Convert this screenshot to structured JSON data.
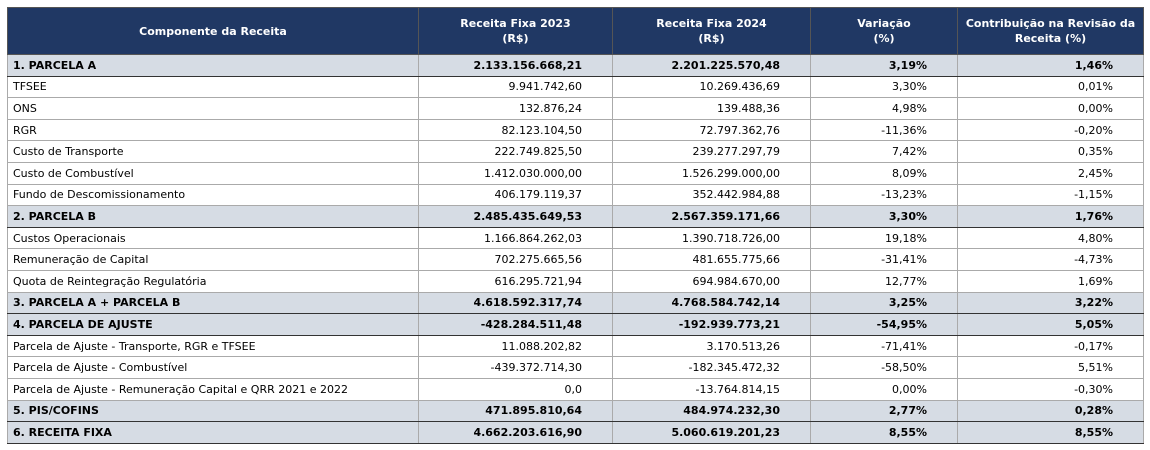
{
  "table": {
    "header": [
      [
        "Componente da Receita"
      ],
      [
        "Receita Fixa 2023",
        "(R$)"
      ],
      [
        "Receita Fixa 2024",
        "(R$)"
      ],
      [
        "Variação",
        "(%)"
      ],
      [
        "Contribuição na Revisão da",
        "Receita (%)"
      ]
    ],
    "rows": [
      {
        "bold": true,
        "cells": [
          "1. PARCELA A",
          "2.133.156.668,21",
          "2.201.225.570,48",
          "3,19%",
          "1,46%"
        ]
      },
      {
        "bold": false,
        "cells": [
          "TFSEE",
          "9.941.742,60",
          "10.269.436,69",
          "3,30%",
          "0,01%"
        ]
      },
      {
        "bold": false,
        "cells": [
          "ONS",
          "132.876,24",
          "139.488,36",
          "4,98%",
          "0,00%"
        ]
      },
      {
        "bold": false,
        "cells": [
          "RGR",
          "82.123.104,50",
          "72.797.362,76",
          "-11,36%",
          "-0,20%"
        ]
      },
      {
        "bold": false,
        "cells": [
          "Custo de Transporte",
          "222.749.825,50",
          "239.277.297,79",
          "7,42%",
          "0,35%"
        ]
      },
      {
        "bold": false,
        "cells": [
          "Custo de Combustível",
          "1.412.030.000,00",
          "1.526.299.000,00",
          "8,09%",
          "2,45%"
        ]
      },
      {
        "bold": false,
        "cells": [
          "Fundo de Descomissionamento",
          "406.179.119,37",
          "352.442.984,88",
          "-13,23%",
          "-1,15%"
        ]
      },
      {
        "bold": true,
        "cells": [
          "2. PARCELA B",
          "2.485.435.649,53",
          "2.567.359.171,66",
          "3,30%",
          "1,76%"
        ]
      },
      {
        "bold": false,
        "cells": [
          "Custos Operacionais",
          "1.166.864.262,03",
          "1.390.718.726,00",
          "19,18%",
          "4,80%"
        ]
      },
      {
        "bold": false,
        "cells": [
          "Remuneração de Capital",
          "702.275.665,56",
          "481.655.775,66",
          "-31,41%",
          "-4,73%"
        ]
      },
      {
        "bold": false,
        "cells": [
          "Quota de Reintegração Regulatória",
          "616.295.721,94",
          "694.984.670,00",
          "12,77%",
          "1,69%"
        ]
      },
      {
        "bold": true,
        "cells": [
          "3. PARCELA A + PARCELA B",
          "4.618.592.317,74",
          "4.768.584.742,14",
          "3,25%",
          "3,22%"
        ]
      },
      {
        "bold": true,
        "cells": [
          "4. PARCELA DE AJUSTE",
          "-428.284.511,48",
          "-192.939.773,21",
          "-54,95%",
          "5,05%"
        ]
      },
      {
        "bold": false,
        "cells": [
          "Parcela de Ajuste - Transporte, RGR e TFSEE",
          "11.088.202,82",
          "3.170.513,26",
          "-71,41%",
          "-0,17%"
        ]
      },
      {
        "bold": false,
        "cells": [
          "Parcela de Ajuste - Combustível",
          "-439.372.714,30",
          "-182.345.472,32",
          "-58,50%",
          "5,51%"
        ]
      },
      {
        "bold": false,
        "cells": [
          "Parcela de Ajuste - Remuneração Capital e QRR 2021 e 2022",
          "0,0",
          "-13.764.814,15",
          "0,00%",
          "-0,30%"
        ]
      },
      {
        "bold": true,
        "cells": [
          "5. PIS/COFINS",
          "471.895.810,64",
          "484.974.232,30",
          "2,77%",
          "0,28%"
        ]
      },
      {
        "bold": true,
        "cells": [
          "6. RECEITA FIXA",
          "4.662.203.616,90",
          "5.060.619.201,23",
          "8,55%",
          "8,55%"
        ]
      }
    ]
  }
}
